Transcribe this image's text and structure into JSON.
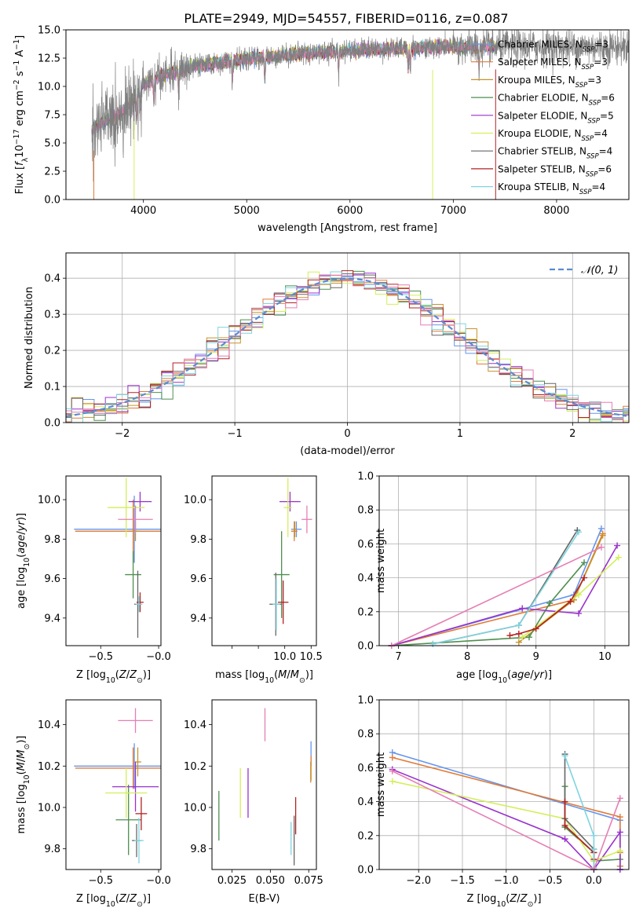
{
  "title": "PLATE=2949, MJD=54557, FIBERID=0116, z=0.087",
  "colors": {
    "Chabrier MILES": "#6495ed",
    "Salpeter MILES": "#e07b39",
    "Kroupa MILES": "#c8922a",
    "Chabrier ELODIE": "#4f8f4f",
    "Salpeter ELODIE": "#9932cc",
    "Kroupa ELODIE": "#d4ee5a",
    "Chabrier STELIB": "#666666",
    "Salpeter STELIB": "#b22222",
    "Kroupa STELIB": "#7fd4e0",
    "pink": "#e57fb5"
  },
  "chart_data": [
    {
      "id": "spectrum",
      "type": "line",
      "xlabel": "wavelength [Angstrom, rest frame]",
      "ylabel": "Flux [f_λ 10^-17 erg cm^-2 s^-1 A^-1]",
      "xlim": [
        3250,
        8700
      ],
      "ylim": [
        0,
        15
      ],
      "xticks": [
        4000,
        5000,
        6000,
        7000,
        8000
      ],
      "yticks": [
        0.0,
        2.5,
        5.0,
        7.5,
        10.0,
        12.5,
        15.0
      ],
      "legend_position": "right",
      "legend": [
        {
          "label": "Chabrier MILES, N",
          "sub": "SSP",
          "eq": "=3",
          "key": "Chabrier MILES"
        },
        {
          "label": "Salpeter MILES, N",
          "sub": "SSP",
          "eq": "=3",
          "key": "Salpeter MILES"
        },
        {
          "label": "Kroupa MILES, N",
          "sub": "SSP",
          "eq": "=3",
          "key": "Kroupa MILES"
        },
        {
          "label": "Chabrier ELODIE, N",
          "sub": "SSP",
          "eq": "=6",
          "key": "Chabrier ELODIE"
        },
        {
          "label": "Salpeter ELODIE, N",
          "sub": "SSP",
          "eq": "=5",
          "key": "Salpeter ELODIE"
        },
        {
          "label": "Kroupa ELODIE, N",
          "sub": "SSP",
          "eq": "=4",
          "key": "Kroupa ELODIE"
        },
        {
          "label": "Chabrier STELIB, N",
          "sub": "SSP",
          "eq": "=4",
          "key": "Chabrier STELIB"
        },
        {
          "label": "Salpeter STELIB, N",
          "sub": "SSP",
          "eq": "=6",
          "key": "Salpeter STELIB"
        },
        {
          "label": "Kroupa STELIB, N",
          "sub": "SSP",
          "eq": "=4",
          "key": "Kroupa STELIB"
        }
      ],
      "continuum": [
        [
          3500,
          6.2
        ],
        [
          3600,
          6.8
        ],
        [
          3700,
          7.3
        ],
        [
          3800,
          7.8
        ],
        [
          3900,
          8.8
        ],
        [
          4000,
          10.2
        ],
        [
          4200,
          11.0
        ],
        [
          4500,
          11.8
        ],
        [
          5000,
          12.4
        ],
        [
          5500,
          12.9
        ],
        [
          6000,
          13.2
        ],
        [
          6500,
          13.4
        ],
        [
          7000,
          13.5
        ],
        [
          7400,
          13.5
        ]
      ],
      "observed_range": [
        3500,
        8700
      ],
      "model_range": [
        3500,
        7400
      ]
    },
    {
      "id": "residuals",
      "type": "histogram",
      "xlabel": "(data-model)/error",
      "ylabel": "Normed distribution",
      "xlim": [
        -2.5,
        2.5
      ],
      "ylim": [
        0,
        0.47
      ],
      "xticks": [
        -2,
        -1,
        0,
        1,
        2
      ],
      "yticks": [
        0.0,
        0.1,
        0.2,
        0.3,
        0.4
      ],
      "bin_width": 0.1,
      "reference": {
        "label": "𝒩(0, 1)",
        "mean": 0,
        "sigma": 1,
        "color": "#5b8bd0"
      },
      "legend_position": "top-right"
    },
    {
      "id": "age_vs_Z",
      "type": "errorbar",
      "xlabel": "Z [log10(Z/Z⊙)]",
      "ylabel": "age [log10(age/yr)]",
      "xlim": [
        -0.8,
        0.02
      ],
      "ylim": [
        9.26,
        10.12
      ],
      "xticks": [
        -0.5,
        -0.0
      ],
      "yticks": [
        9.4,
        9.6,
        9.8,
        10.0
      ],
      "points": [
        {
          "key": "Chabrier MILES",
          "x": -0.21,
          "xerr": 0.52,
          "y": 9.85,
          "yerr": 0.17
        },
        {
          "key": "Salpeter MILES",
          "x": -0.22,
          "xerr": 0.5,
          "y": 9.84,
          "yerr": 0.16
        },
        {
          "key": "Kroupa MILES",
          "x": -0.2,
          "xerr": 0.04,
          "y": 9.84,
          "yerr": 0.05
        },
        {
          "key": "Chabrier ELODIE",
          "x": -0.22,
          "xerr": 0.07,
          "y": 9.62,
          "yerr": 0.12
        },
        {
          "key": "Salpeter ELODIE",
          "x": -0.16,
          "xerr": 0.1,
          "y": 9.99,
          "yerr": 0.05
        },
        {
          "key": "Kroupa ELODIE",
          "x": -0.28,
          "xerr": 0.16,
          "y": 9.96,
          "yerr": 0.15
        },
        {
          "key": "Chabrier STELIB",
          "x": -0.18,
          "xerr": 0.03,
          "y": 9.47,
          "yerr": 0.17
        },
        {
          "key": "Salpeter STELIB",
          "x": -0.16,
          "xerr": 0.03,
          "y": 9.48,
          "yerr": 0.05
        },
        {
          "key": "Kroupa STELIB",
          "x": -0.17,
          "xerr": 0.03,
          "y": 9.47,
          "yerr": 0.04
        },
        {
          "key": "pink",
          "x": -0.2,
          "xerr": 0.15,
          "y": 9.9,
          "yerr": 0.07
        }
      ]
    },
    {
      "id": "age_vs_mass",
      "type": "errorbar",
      "xlabel": "mass [log10(M/M⊙)]",
      "ylabel": "",
      "xlim": [
        8.62,
        10.6
      ],
      "ylim": [
        9.26,
        10.12
      ],
      "xticks": [
        9.0,
        9.5,
        10.0,
        10.5
      ],
      "xticklabels": [
        "",
        "",
        "10.0",
        "10.5"
      ],
      "yticks": [
        9.4,
        9.6,
        9.8,
        10.0
      ],
      "points": [
        {
          "key": "Chabrier MILES",
          "x": 10.22,
          "xerr": 0.1,
          "y": 9.85,
          "yerr": 0.04
        },
        {
          "key": "Salpeter MILES",
          "x": 10.18,
          "xerr": 0.06,
          "y": 9.84,
          "yerr": 0.05
        },
        {
          "key": "Kroupa MILES",
          "x": 10.19,
          "xerr": 0.03,
          "y": 9.85,
          "yerr": 0.04
        },
        {
          "key": "Chabrier ELODIE",
          "x": 9.94,
          "xerr": 0.15,
          "y": 9.62,
          "yerr": 0.22
        },
        {
          "key": "Salpeter ELODIE",
          "x": 10.1,
          "xerr": 0.2,
          "y": 9.99,
          "yerr": 0.05
        },
        {
          "key": "Kroupa ELODIE",
          "x": 10.06,
          "xerr": 0.08,
          "y": 9.96,
          "yerr": 0.15
        },
        {
          "key": "Chabrier STELIB",
          "x": 9.83,
          "xerr": 0.12,
          "y": 9.47,
          "yerr": 0.16
        },
        {
          "key": "Salpeter STELIB",
          "x": 9.97,
          "xerr": 0.1,
          "y": 9.48,
          "yerr": 0.11
        },
        {
          "key": "Kroupa STELIB",
          "x": 9.84,
          "xerr": 0.07,
          "y": 9.47,
          "yerr": 0.13
        },
        {
          "key": "pink",
          "x": 10.42,
          "xerr": 0.1,
          "y": 9.9,
          "yerr": 0.07
        }
      ]
    },
    {
      "id": "weight_vs_age",
      "type": "line",
      "xlabel": "age [log10(age/yr)]",
      "ylabel": "mass weight",
      "xlim": [
        6.72,
        10.35
      ],
      "ylim": [
        0,
        1
      ],
      "xticks": [
        7,
        8,
        9,
        10
      ],
      "yticks": [
        0.0,
        0.2,
        0.4,
        0.6,
        0.8,
        1.0
      ],
      "grid": true,
      "series": [
        {
          "key": "Chabrier MILES",
          "x": [
            6.9,
            9.55,
            9.95
          ],
          "y": [
            0.0,
            0.3,
            0.69
          ]
        },
        {
          "key": "Salpeter MILES",
          "x": [
            6.9,
            9.55,
            9.97
          ],
          "y": [
            0.0,
            0.27,
            0.66
          ]
        },
        {
          "key": "Kroupa MILES",
          "x": [
            8.75,
            9.55,
            9.97
          ],
          "y": [
            0.02,
            0.27,
            0.65
          ]
        },
        {
          "key": "Chabrier ELODIE",
          "x": [
            6.9,
            8.9,
            9.2,
            9.7
          ],
          "y": [
            0.0,
            0.05,
            0.25,
            0.49
          ]
        },
        {
          "key": "Salpeter ELODIE",
          "x": [
            6.9,
            8.8,
            9.62,
            10.18
          ],
          "y": [
            0.0,
            0.22,
            0.19,
            0.59
          ]
        },
        {
          "key": "Kroupa ELODIE",
          "x": [
            8.8,
            9.62,
            10.2
          ],
          "y": [
            0.05,
            0.3,
            0.52
          ]
        },
        {
          "key": "Chabrier STELIB",
          "x": [
            7.5,
            8.75,
            9.6
          ],
          "y": [
            0.01,
            0.12,
            0.68
          ]
        },
        {
          "key": "Salpeter STELIB",
          "x": [
            8.62,
            8.75,
            9.0,
            9.5,
            9.7
          ],
          "y": [
            0.06,
            0.07,
            0.1,
            0.26,
            0.4
          ]
        },
        {
          "key": "Kroupa STELIB",
          "x": [
            7.5,
            8.75,
            9.62
          ],
          "y": [
            0.01,
            0.12,
            0.67
          ]
        },
        {
          "key": "pink",
          "x": [
            6.9,
            9.95
          ],
          "y": [
            0.0,
            0.58
          ]
        }
      ]
    },
    {
      "id": "mass_vs_Z",
      "type": "errorbar",
      "xlabel": "Z [log10(Z/Z⊙)]",
      "ylabel": "mass [log10(M/M⊙)]",
      "xlim": [
        -0.8,
        0.02
      ],
      "ylim": [
        9.7,
        10.52
      ],
      "xticks": [
        -0.5,
        -0.0
      ],
      "yticks": [
        9.8,
        10.0,
        10.2,
        10.4
      ],
      "points": [
        {
          "key": "Chabrier MILES",
          "x": -0.21,
          "xerr": 0.52,
          "y": 10.2,
          "yerr": 0.11
        },
        {
          "key": "Salpeter MILES",
          "x": -0.22,
          "xerr": 0.5,
          "y": 10.19,
          "yerr": 0.1
        },
        {
          "key": "Kroupa MILES",
          "x": -0.18,
          "xerr": 0.03,
          "y": 10.22,
          "yerr": 0.07
        },
        {
          "key": "Chabrier ELODIE",
          "x": -0.26,
          "xerr": 0.11,
          "y": 9.94,
          "yerr": 0.17
        },
        {
          "key": "Salpeter ELODIE",
          "x": -0.2,
          "xerr": 0.2,
          "y": 10.1,
          "yerr": 0.12
        },
        {
          "key": "Kroupa ELODIE",
          "x": -0.28,
          "xerr": 0.18,
          "y": 10.07,
          "yerr": 0.12
        },
        {
          "key": "Chabrier STELIB",
          "x": -0.19,
          "xerr": 0.04,
          "y": 9.84,
          "yerr": 0.08
        },
        {
          "key": "Salpeter STELIB",
          "x": -0.15,
          "xerr": 0.05,
          "y": 9.97,
          "yerr": 0.08
        },
        {
          "key": "Kroupa STELIB",
          "x": -0.17,
          "xerr": 0.04,
          "y": 9.84,
          "yerr": 0.11
        },
        {
          "key": "pink",
          "x": -0.2,
          "xerr": 0.15,
          "y": 10.42,
          "yerr": 0.06
        }
      ]
    },
    {
      "id": "mass_vs_EBV",
      "type": "errorbar",
      "xlabel": "E(B-V)",
      "ylabel": "",
      "xlim": [
        0.012,
        0.08
      ],
      "ylim": [
        9.7,
        10.52
      ],
      "xticks": [
        0.025,
        0.05,
        0.075
      ],
      "xticklabels": [
        "0.025",
        "0.050",
        "0.075"
      ],
      "yticks": [
        9.8,
        10.0,
        10.2,
        10.4
      ],
      "points": [
        {
          "key": "Chabrier MILES",
          "x": 0.0765,
          "xerr": 0,
          "y": 10.26,
          "yerr": 0.06
        },
        {
          "key": "Salpeter MILES",
          "x": 0.0765,
          "xerr": 0,
          "y": 10.19,
          "yerr": 0.06
        },
        {
          "key": "Kroupa MILES",
          "x": 0.0763,
          "xerr": 0,
          "y": 10.17,
          "yerr": 0.05
        },
        {
          "key": "Chabrier ELODIE",
          "x": 0.0165,
          "xerr": 0,
          "y": 9.96,
          "yerr": 0.12
        },
        {
          "key": "Salpeter ELODIE",
          "x": 0.0355,
          "xerr": 0,
          "y": 10.07,
          "yerr": 0.12
        },
        {
          "key": "Kroupa ELODIE",
          "x": 0.0305,
          "xerr": 0,
          "y": 10.07,
          "yerr": 0.12
        },
        {
          "key": "Chabrier STELIB",
          "x": 0.0655,
          "xerr": 0,
          "y": 9.84,
          "yerr": 0.12
        },
        {
          "key": "Salpeter STELIB",
          "x": 0.0665,
          "xerr": 0,
          "y": 9.96,
          "yerr": 0.09
        },
        {
          "key": "Kroupa STELIB",
          "x": 0.0635,
          "xerr": 0,
          "y": 9.85,
          "yerr": 0.08
        },
        {
          "key": "pink",
          "x": 0.0465,
          "xerr": 0,
          "y": 10.4,
          "yerr": 0.08
        }
      ]
    },
    {
      "id": "weight_vs_Z",
      "type": "line",
      "xlabel": "Z [log10(Z/Z⊙)]",
      "ylabel": "mass weight",
      "xlim": [
        -2.45,
        0.4
      ],
      "ylim": [
        0,
        1
      ],
      "xticks": [
        -2.0,
        -1.5,
        -1.0,
        -0.5,
        0.0
      ],
      "xticklabels": [
        "−2.0",
        "−1.5",
        "−1.0",
        "−0.5",
        "0.0"
      ],
      "yticks": [
        0.0,
        0.2,
        0.4,
        0.6,
        0.8,
        1.0
      ],
      "grid": true,
      "series": [
        {
          "key": "Chabrier MILES",
          "x": [
            -2.3,
            0.3,
            0.3
          ],
          "y": [
            0.69,
            0.29,
            0.0
          ]
        },
        {
          "key": "Salpeter MILES",
          "x": [
            -2.3,
            0.3,
            0.3
          ],
          "y": [
            0.66,
            0.31,
            0.02
          ]
        },
        {
          "key": "Kroupa MILES",
          "x": [
            0.3,
            0.3
          ],
          "y": [
            0.02,
            0.1
          ]
        },
        {
          "key": "Chabrier ELODIE",
          "x": [
            -0.33,
            -0.33,
            0.0,
            0.0,
            0.3
          ],
          "y": [
            0.49,
            0.25,
            0.1,
            0.05,
            0.06
          ]
        },
        {
          "key": "Salpeter ELODIE",
          "x": [
            -2.3,
            -0.33,
            0.0,
            0.3,
            0.3
          ],
          "y": [
            0.59,
            0.18,
            0.0,
            0.22,
            0.0
          ]
        },
        {
          "key": "Kroupa ELODIE",
          "x": [
            -2.3,
            -0.33,
            0.0,
            0.3
          ],
          "y": [
            0.52,
            0.3,
            0.05,
            0.11
          ]
        },
        {
          "key": "Chabrier STELIB",
          "x": [
            -0.33,
            -0.33,
            0.0,
            0.0
          ],
          "y": [
            0.68,
            0.3,
            0.12,
            0.0
          ]
        },
        {
          "key": "Salpeter STELIB",
          "x": [
            -0.33,
            -0.33,
            0.0,
            0.0
          ],
          "y": [
            0.4,
            0.26,
            0.1,
            0.06
          ]
        },
        {
          "key": "Kroupa STELIB",
          "x": [
            -0.33,
            0.0,
            0.0,
            0.0
          ],
          "y": [
            0.67,
            0.2,
            0.12,
            0.01
          ]
        },
        {
          "key": "pink",
          "x": [
            -2.3,
            0.0,
            0.3
          ],
          "y": [
            0.58,
            0.0,
            0.42
          ]
        }
      ]
    }
  ]
}
